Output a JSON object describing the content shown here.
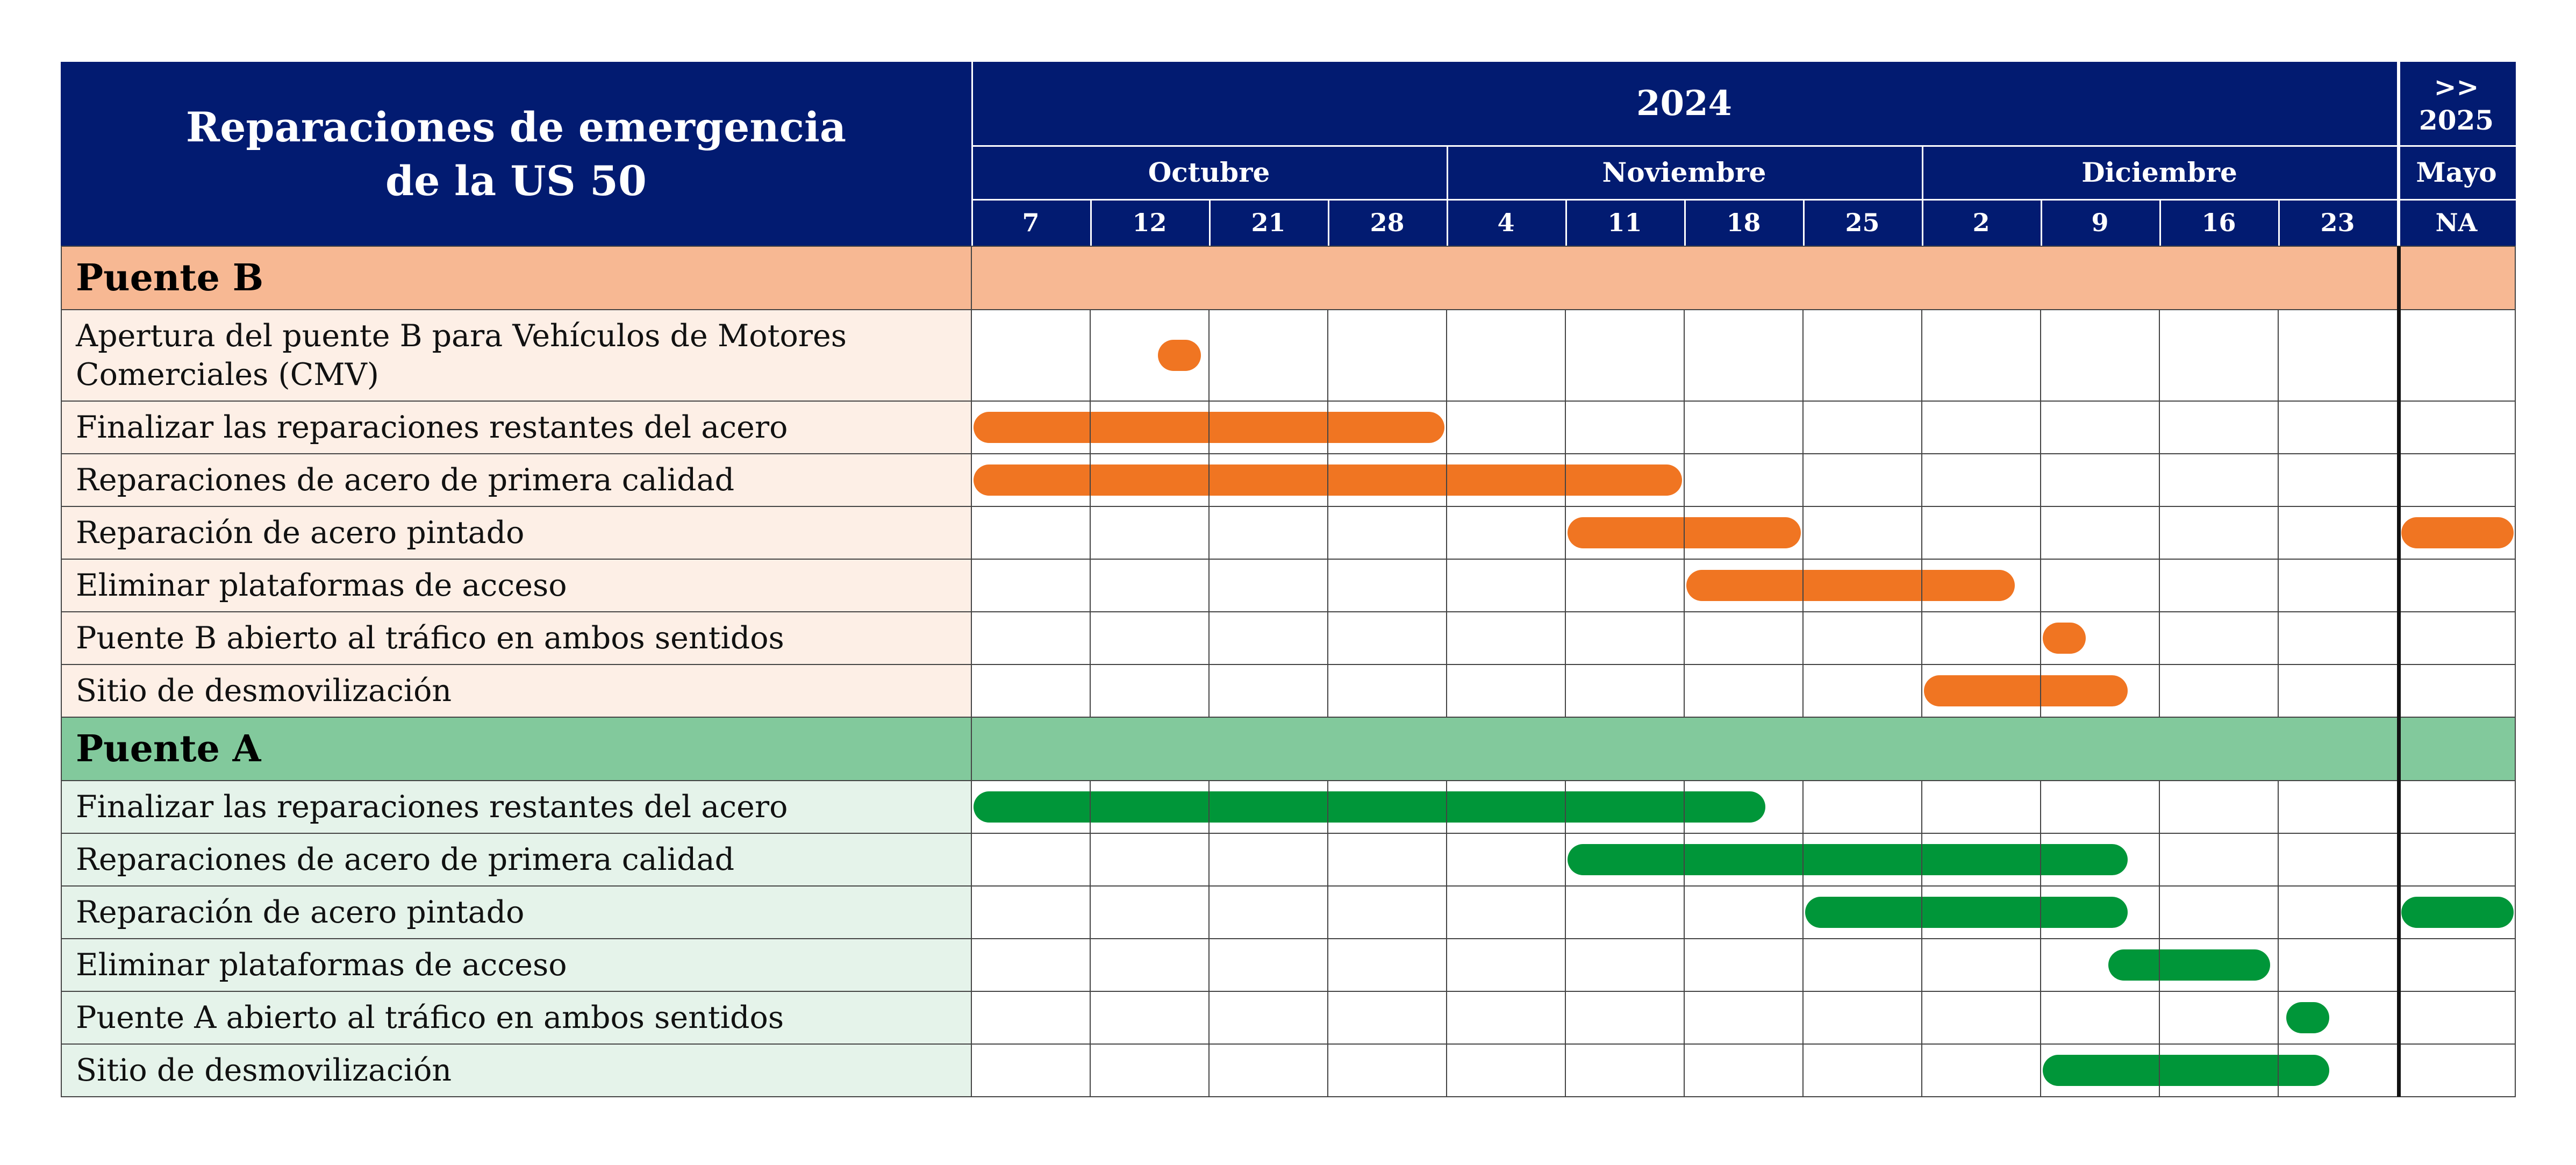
{
  "chart_data": {
    "type": "gantt",
    "title": "Reparaciones de emergencia de la US 50",
    "title_lines": [
      "Reparaciones de emergencia",
      "de la US 50"
    ],
    "timeline": {
      "years": [
        {
          "label": "2024"
        },
        {
          "label": ">> 2025",
          "lines": [
            ">>",
            "2025"
          ]
        }
      ],
      "months": [
        {
          "label": "Octubre",
          "year": "2024"
        },
        {
          "label": "Noviembre",
          "year": "2024"
        },
        {
          "label": "Diciembre",
          "year": "2024"
        },
        {
          "label": "Mayo",
          "year": "2025"
        }
      ],
      "columns": [
        "7",
        "12",
        "21",
        "28",
        "4",
        "11",
        "18",
        "25",
        "2",
        "9",
        "16",
        "23",
        "NA"
      ]
    },
    "colors": {
      "header_bg": "#021b71",
      "header_text": "#ffffff",
      "section_b_bg": "#f7b893",
      "task_b_bg": "#fdefe6",
      "bar_b": "#f07522",
      "section_a_bg": "#82c99c",
      "task_a_bg": "#e5f3ea",
      "bar_a": "#009639",
      "grid": "#444444"
    },
    "sections": [
      {
        "name": "Puente B",
        "tasks": [
          {
            "label": "Apertura del puente B para Vehículos de Motores Comerciales (CMV)",
            "lines": [
              "Apertura del puente B para Vehículos de Motores",
              "Comerciales (CMV)"
            ],
            "start": 1.55,
            "end": 1.95
          },
          {
            "label": "Finalizar las reparaciones restantes del acero",
            "start": 0.0,
            "end": 4.0
          },
          {
            "label": "Reparaciones de acero de primera calidad",
            "start": 0.0,
            "end": 6.0
          },
          {
            "label": "Reparación de acero pintado",
            "start": 5.0,
            "end": 7.0,
            "continues_2025": true
          },
          {
            "label": "Eliminar plataformas de acceso",
            "start": 6.0,
            "end": 8.8
          },
          {
            "label": "Puente B abierto al tráfico en ambos sentidos",
            "start": 9.0,
            "end": 9.4
          },
          {
            "label": "Sitio de desmovilización",
            "start": 8.0,
            "end": 9.75
          }
        ]
      },
      {
        "name": "Puente A",
        "tasks": [
          {
            "label": "Finalizar las reparaciones restantes del acero",
            "start": 0.0,
            "end": 6.7
          },
          {
            "label": "Reparaciones de acero de primera calidad",
            "start": 5.0,
            "end": 9.75
          },
          {
            "label": "Reparación de acero pintado",
            "start": 7.0,
            "end": 9.75,
            "continues_2025": true
          },
          {
            "label": "Eliminar plataformas de acceso",
            "start": 9.55,
            "end": 10.95
          },
          {
            "label": "Puente A abierto al tráfico en ambos sentidos",
            "start": 11.05,
            "end": 11.45
          },
          {
            "label": "Sitio de desmovilización",
            "start": 9.0,
            "end": 11.45
          }
        ]
      }
    ]
  }
}
